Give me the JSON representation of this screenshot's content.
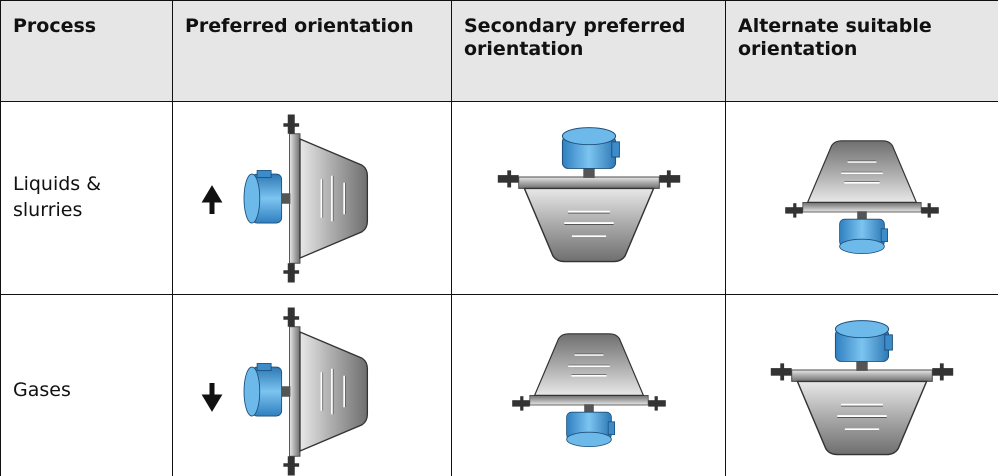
{
  "table": {
    "header": [
      "Process",
      "Preferred orientation",
      "Secondary preferred orientation",
      "Alternate suitable orientation"
    ],
    "rows": [
      [
        "Liquids & slurries"
      ],
      [
        "Gases"
      ]
    ]
  }
}
